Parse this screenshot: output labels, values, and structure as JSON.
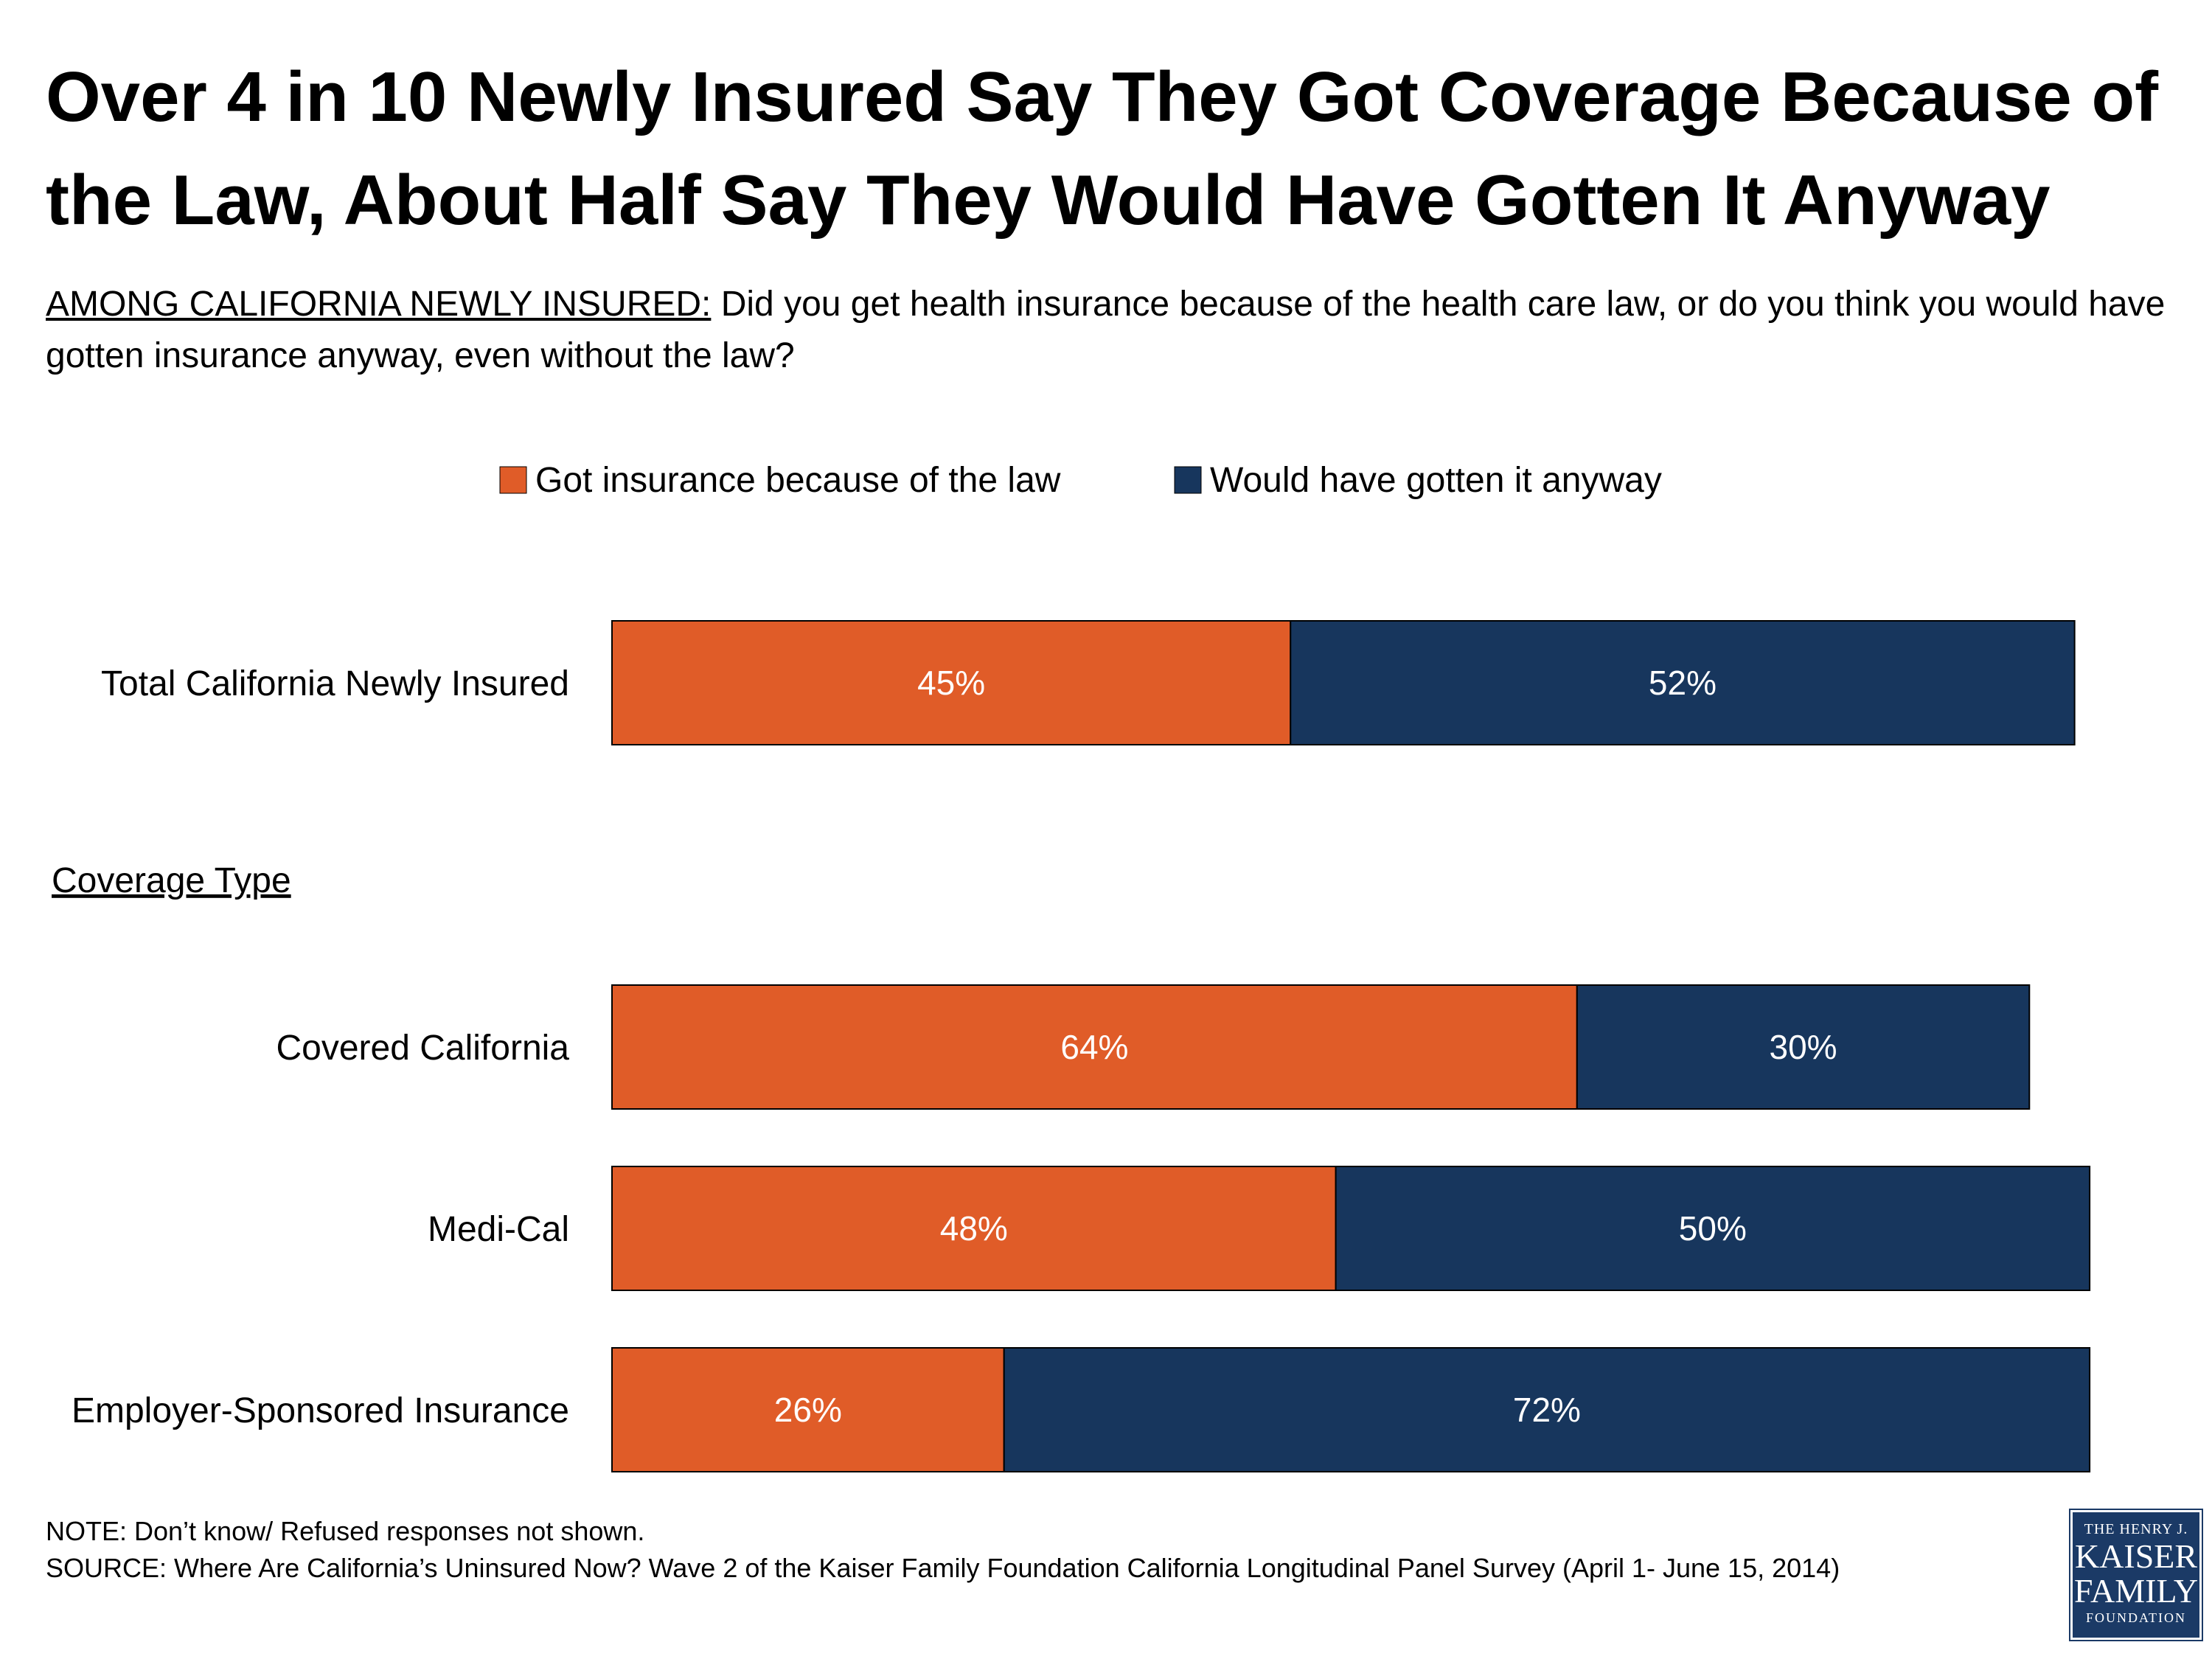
{
  "title": "Over 4 in 10 Newly Insured Say They Got Coverage Because of the Law, About Half Say They Would Have Gotten It Anyway",
  "subtitle": {
    "prefix": "AMONG CALIFORNIA NEWLY INSURED:",
    "question": " Did you get health insurance because of the health care law, or do you think you would have gotten insurance anyway, even without the law?"
  },
  "colors": {
    "law": "#e05c28",
    "anyway": "#17365d"
  },
  "chart_data": {
    "type": "bar",
    "orientation": "horizontal",
    "stacked": true,
    "legend_position": "top",
    "grid": false,
    "xlim": [
      0,
      100
    ],
    "section_label": "Coverage Type",
    "categories": [
      "Total California Newly Insured",
      "Covered California",
      "Medi-Cal",
      "Employer-Sponsored Insurance"
    ],
    "series": [
      {
        "name": "Got insurance because of the law",
        "values": [
          45,
          64,
          48,
          26
        ]
      },
      {
        "name": "Would have gotten it anyway",
        "values": [
          52,
          30,
          50,
          72
        ]
      }
    ],
    "value_suffix": "%"
  },
  "note": "NOTE: Don’t know/ Refused responses not shown.",
  "source": "SOURCE: Where Are California’s Uninsured Now? Wave 2 of the Kaiser Family Foundation California Longitudinal Panel Survey (April 1- June 15, 2014)",
  "logo": {
    "line1": "THE HENRY J.",
    "line2": "KAISER",
    "line3": "FAMILY",
    "line4": "FOUNDATION"
  }
}
